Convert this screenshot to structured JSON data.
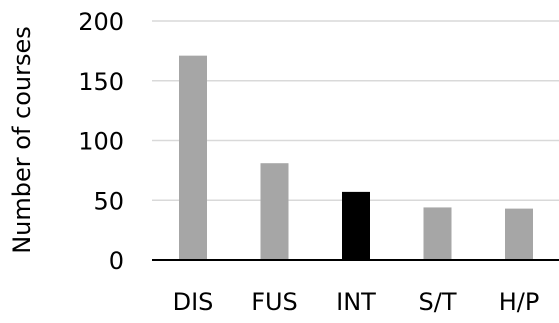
{
  "chart_data": {
    "type": "bar",
    "title": "",
    "xlabel": "",
    "ylabel": "Number of courses",
    "categories": [
      "DIS",
      "FUS",
      "INT",
      "S/T",
      "H/P"
    ],
    "values": [
      171,
      81,
      57,
      44,
      43
    ],
    "ylim": [
      0,
      200
    ],
    "yticks": [
      0,
      50,
      100,
      150,
      200
    ],
    "grid": true,
    "legend": "none",
    "bar_colors": [
      "#a6a6a6",
      "#a6a6a6",
      "#000000",
      "#a6a6a6",
      "#a6a6a6"
    ],
    "grid_color": "#d9d9d9",
    "axis_color": "#000000"
  }
}
